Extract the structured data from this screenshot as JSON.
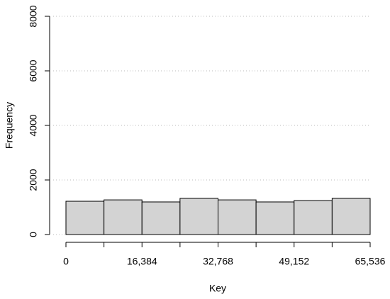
{
  "chart_data": {
    "type": "histogram",
    "xlabel": "Key",
    "ylabel": "Frequency",
    "bins": [
      0,
      8192,
      16384,
      24576,
      32768,
      40960,
      49152,
      57344,
      65536
    ],
    "values": [
      1220,
      1270,
      1195,
      1325,
      1270,
      1195,
      1245,
      1325
    ],
    "color": "#d3d3d3",
    "xlim": [
      0,
      65536
    ],
    "xticks": [
      0,
      {
        "value": 16384,
        "label": "16,384"
      },
      {
        "value": 32768,
        "label": "32,768"
      },
      {
        "value": 49152,
        "label": "49,152"
      },
      {
        "value": 65536,
        "label": "65,536"
      }
    ],
    "ylim": [
      0,
      8000
    ],
    "yticks": [
      0,
      2000,
      4000,
      6000,
      8000
    ],
    "grid": true
  }
}
